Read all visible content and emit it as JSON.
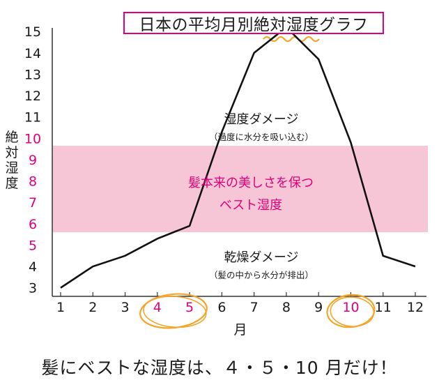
{
  "chart_data": {
    "type": "line",
    "title": "日本の平均月別絶対湿度グラフ",
    "xlabel": "月",
    "ylabel": "絶対湿度",
    "x": [
      1,
      2,
      3,
      4,
      5,
      6,
      7,
      8,
      9,
      10,
      11,
      12
    ],
    "x_tick_labels": [
      "1",
      "2",
      "3",
      "4",
      "5",
      "6",
      "7",
      "8",
      "9",
      "10",
      "11",
      "12"
    ],
    "y_tick_labels": [
      "3",
      "4",
      "5",
      "6",
      "7",
      "8",
      "9",
      "10",
      "11",
      "12",
      "13",
      "14",
      "15"
    ],
    "y_ticks": [
      3,
      4,
      5,
      6,
      7,
      8,
      9,
      10,
      11,
      12,
      13,
      14,
      15
    ],
    "ylim": [
      2.6,
      15.3
    ],
    "xlim": [
      1,
      12
    ],
    "series": [
      {
        "values": [
          3.0,
          4.0,
          4.5,
          5.3,
          5.9,
          10.3,
          14.0,
          15.2,
          13.7,
          9.8,
          4.5,
          4.0
        ]
      }
    ],
    "band": {
      "from": 5.6,
      "to": 9.65,
      "color": "#f7c6d6",
      "label_lines": [
        "髪本来の美しさを保つ",
        "ベスト湿度"
      ]
    },
    "highlight_months": [
      4,
      5,
      10
    ],
    "highlight_color": "#e0007a",
    "highlight_y_ticks": [
      5,
      6,
      7,
      8,
      9,
      10
    ],
    "circle_color": "#f5a52a",
    "line_color": "#111111",
    "grid": false,
    "legend": "none",
    "annotations": [
      {
        "main": "湿度ダメージ",
        "sub": "（過度に水分を吸い込む）"
      },
      {
        "main": "乾燥ダメージ",
        "sub": "（髪の中から水分が排出）"
      }
    ]
  },
  "footer_text": "髪にベストな湿度は、４・５・10 月だけ！"
}
